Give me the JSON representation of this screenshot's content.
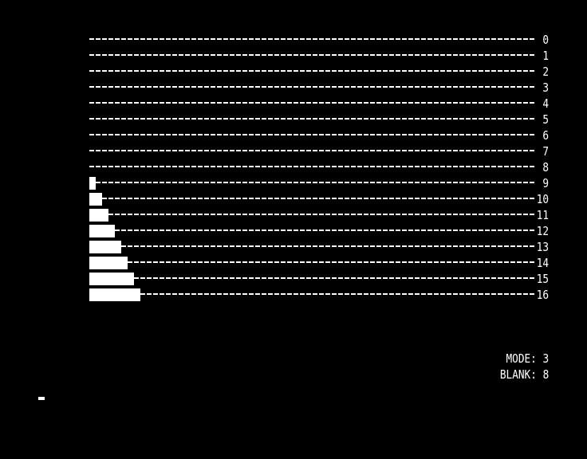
{
  "rows": [
    {
      "label": "0",
      "bar_fraction": 0
    },
    {
      "label": "1",
      "bar_fraction": 0
    },
    {
      "label": "2",
      "bar_fraction": 0
    },
    {
      "label": "3",
      "bar_fraction": 0
    },
    {
      "label": "4",
      "bar_fraction": 0
    },
    {
      "label": "5",
      "bar_fraction": 0
    },
    {
      "label": "6",
      "bar_fraction": 0
    },
    {
      "label": "7",
      "bar_fraction": 0
    },
    {
      "label": "8",
      "bar_fraction": 0
    },
    {
      "label": "9",
      "bar_fraction": 0.125
    },
    {
      "label": "10",
      "bar_fraction": 0.25
    },
    {
      "label": "11",
      "bar_fraction": 0.375
    },
    {
      "label": "12",
      "bar_fraction": 0.5
    },
    {
      "label": "13",
      "bar_fraction": 0.625
    },
    {
      "label": "14",
      "bar_fraction": 0.75
    },
    {
      "label": "15",
      "bar_fraction": 0.875
    },
    {
      "label": "16",
      "bar_fraction": 1
    }
  ],
  "status": {
    "mode_text": "MODE: 3",
    "blank_text": "BLANK: 8"
  },
  "colors": {
    "foreground": "#ffffff",
    "background": "#000000"
  }
}
